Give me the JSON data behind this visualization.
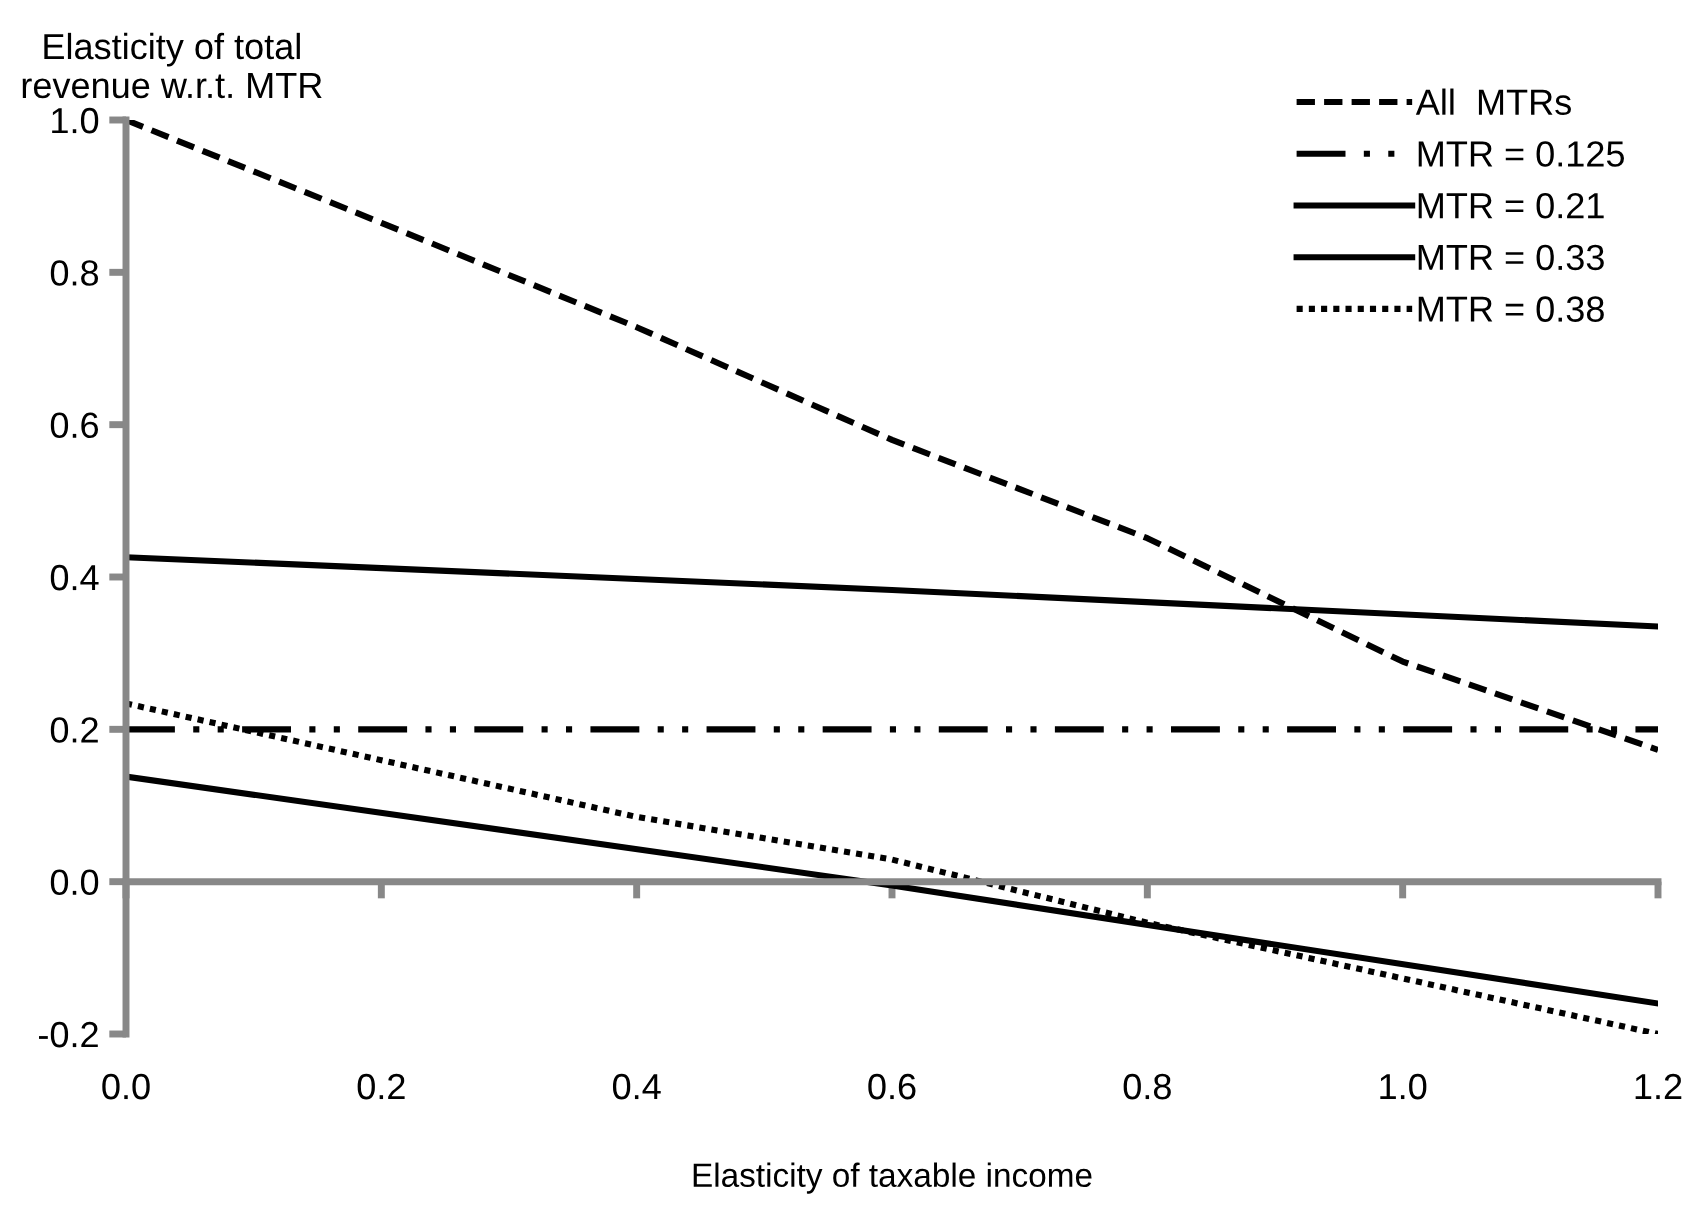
{
  "chart_data": {
    "type": "line",
    "xlabel": "Elasticity of taxable income",
    "ylabel": "Elasticity of total\nrevenue w.r.t. MTR",
    "xlim": [
      0,
      1.2
    ],
    "ylim": [
      -0.2,
      1.0
    ],
    "xticks": [
      {
        "value": 0,
        "label": "0.0"
      },
      0.2,
      0.4,
      0.6,
      0.8,
      {
        "value": 1.0,
        "label": "1.0"
      },
      1.2
    ],
    "yticks": [
      -0.2,
      {
        "value": 0,
        "label": "0.0"
      },
      0.2,
      0.4,
      0.6,
      0.8,
      {
        "value": 1.0,
        "label": "1.0"
      }
    ],
    "legend": "top right",
    "marker": "none",
    "series": [
      {
        "name": "All  MTRs",
        "color": "#000000",
        "line_style": "dashed",
        "x": [
          0,
          0.2,
          0.4,
          0.6,
          0.8,
          1.0,
          1.2
        ],
        "values": [
          1.0,
          0.865,
          0.728,
          0.58,
          0.451,
          0.289,
          0.173
        ]
      },
      {
        "name": "MTR = 0.125",
        "color": "#000000",
        "line_style": "dashdotdot",
        "x": [
          0,
          1.2
        ],
        "values": [
          0.2,
          0.2
        ]
      },
      {
        "name": "MTR = 0.21",
        "color": "#000000",
        "line_style": "solid",
        "x": [
          0,
          0.6,
          1.2
        ],
        "values": [
          0.426,
          0.383,
          0.335
        ]
      },
      {
        "name": "MTR = 0.33",
        "color": "#000000",
        "line_style": "solid",
        "x": [
          0,
          0.6,
          1.2
        ],
        "values": [
          0.138,
          -0.005,
          -0.16
        ]
      },
      {
        "name": "MTR = 0.38",
        "color": "#000000",
        "line_style": "dotted",
        "x": [
          0,
          0.4,
          0.6,
          0.8,
          1.2
        ],
        "values": [
          0.234,
          0.085,
          0.029,
          -0.054,
          -0.2
        ]
      }
    ]
  }
}
